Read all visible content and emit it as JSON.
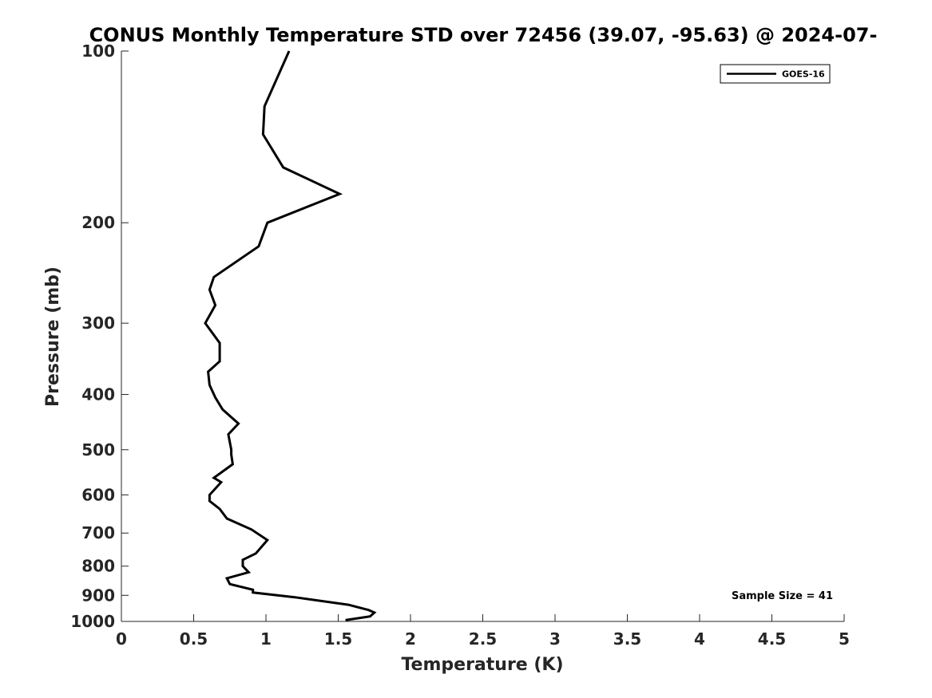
{
  "chart_data": {
    "type": "line",
    "title": "CONUS Monthly Temperature STD over 72456 (39.07, -95.63) @ 2024-07-",
    "xlabel": "Temperature (K)",
    "ylabel": "Pressure (mb)",
    "xlim": [
      0,
      5
    ],
    "ylim": [
      1000,
      100
    ],
    "y_scale": "log",
    "x_ticks": [
      0,
      0.5,
      1,
      1.5,
      2,
      2.5,
      3,
      3.5,
      4,
      4.5,
      5
    ],
    "x_tick_labels": [
      "0",
      "0.5",
      "1",
      "1.5",
      "2",
      "2.5",
      "3",
      "3.5",
      "4",
      "4.5",
      "5"
    ],
    "y_ticks": [
      100,
      200,
      300,
      400,
      500,
      600,
      700,
      800,
      900,
      1000
    ],
    "y_tick_labels": [
      "100",
      "200",
      "300",
      "400",
      "500",
      "600",
      "700",
      "800",
      "900",
      "1000"
    ],
    "grid": false,
    "legend_position": "top-right",
    "annotation": "Sample Size = 41",
    "line_color": "#000000",
    "series": [
      {
        "name": "GOES-16",
        "x": [
          1.16,
          0.99,
          0.98,
          1.12,
          1.51,
          1.01,
          0.95,
          0.64,
          0.61,
          0.65,
          0.58,
          0.68,
          0.68,
          0.6,
          0.61,
          0.65,
          0.7,
          0.81,
          0.74,
          0.76,
          0.76,
          0.77,
          0.64,
          0.69,
          0.61,
          0.61,
          0.68,
          0.73,
          0.9,
          1.01,
          0.93,
          0.84,
          0.84,
          0.88,
          0.73,
          0.75,
          0.91,
          0.91,
          1.2,
          1.57,
          1.71,
          1.75,
          1.72,
          1.55
        ],
        "y": [
          100,
          125,
          140,
          160,
          178,
          200,
          220,
          249,
          262,
          279,
          300,
          325,
          350,
          365,
          385,
          405,
          425,
          450,
          470,
          500,
          510,
          530,
          560,
          570,
          600,
          615,
          635,
          660,
          690,
          720,
          760,
          780,
          800,
          820,
          840,
          860,
          880,
          890,
          907,
          935,
          955,
          965,
          980,
          995
        ]
      }
    ]
  }
}
